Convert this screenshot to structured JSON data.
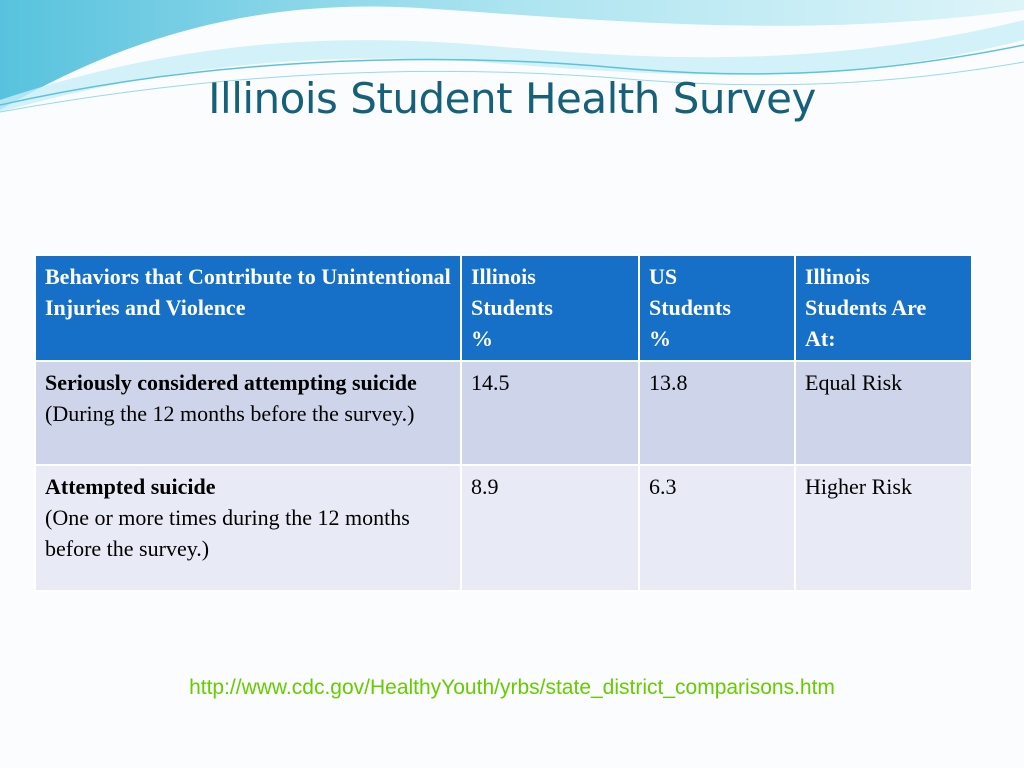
{
  "header": {
    "title": "Illinois Student Health Survey"
  },
  "table": {
    "columns": [
      "Behaviors that Contribute to Unintentional Injuries and Violence",
      "Illinois\nStudents\n%",
      "US\nStudents\n%",
      "Illinois\nStudents Are\nAt:"
    ],
    "rows": [
      {
        "behavior": "Seriously considered attempting suicide",
        "note": "(During the 12 months before the survey.)",
        "illinois": 14.5,
        "us": 13.8,
        "risk": "Equal Risk"
      },
      {
        "behavior": "Attempted suicide",
        "note": "(One or more times during the 12 months before the survey.)",
        "illinois": 8.9,
        "us": 6.3,
        "risk": "Higher Risk"
      }
    ]
  },
  "footer": {
    "source": "http://www.cdc.gov/HealthyYouth/yrbs/state_district_comparisons.htm"
  }
}
